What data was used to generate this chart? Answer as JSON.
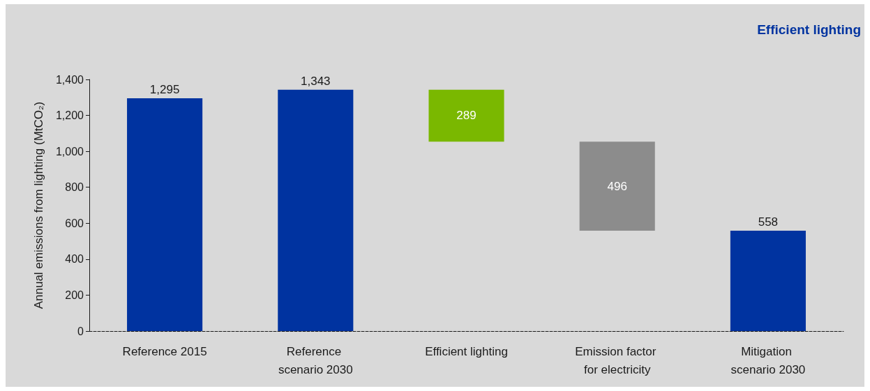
{
  "chart_data": {
    "type": "bar",
    "title": "Efficient lighting",
    "ylabel": "Annual emissions from lighting (MtCO₂)",
    "categories": [
      "Reference 2015",
      "Reference scenario 2030",
      "Efficient lighting",
      "Emission factor for electricity",
      "Mitigation scenario 2030"
    ],
    "values": [
      1295,
      1343,
      289,
      496,
      558
    ],
    "base": [
      0,
      0,
      1054,
      558,
      0
    ],
    "colors": [
      "#0033a0",
      "#0033a0",
      "#7ab800",
      "#8c8c8c",
      "#0033a0"
    ],
    "value_labels": [
      "1,295",
      "1,343",
      "289",
      "496",
      "558"
    ],
    "ylim": [
      0,
      1400
    ],
    "yticks": [
      0,
      200,
      400,
      600,
      800,
      {
        "value": 1000,
        "label": "1,000"
      },
      {
        "value": 1200,
        "label": "1,200"
      },
      {
        "value": 1400,
        "label": "1,400"
      }
    ],
    "grid": false
  }
}
